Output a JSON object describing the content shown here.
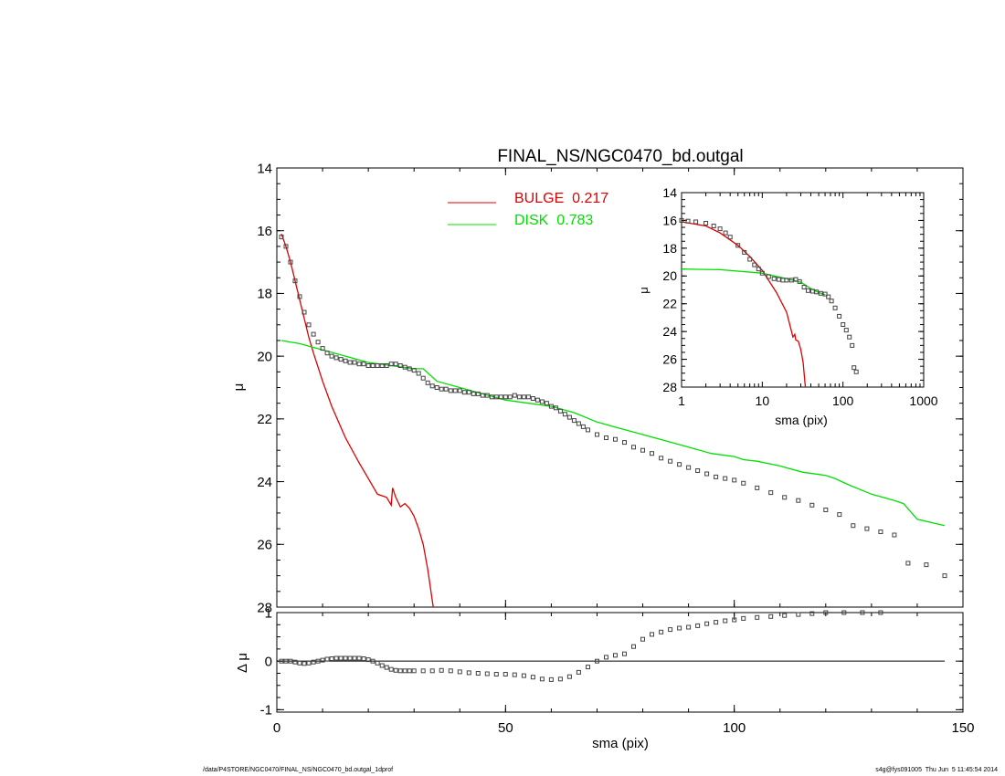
{
  "footer": {
    "path": "/data/P4STORE/NGC0470/FINAL_NS/NGC0470_bd.outgal_1dprof",
    "stamp": "s4g@fys091005  Thu Jun  5 11:45:54 2014"
  },
  "colors": {
    "bulge": "#e00000",
    "disk": "#00e000",
    "data": "#444444",
    "axis": "#000000"
  },
  "chart_data": [
    {
      "type": "line",
      "name": "main",
      "title": "FINAL_NS/NGC0470_bd.outgal",
      "xlabel": "",
      "ylabel": "μ",
      "xlim": [
        0,
        150
      ],
      "ylim": [
        28,
        14
      ],
      "yticks": [
        14,
        16,
        18,
        20,
        22,
        24,
        26,
        28
      ],
      "xticks": [
        0,
        50,
        100,
        150
      ],
      "legend": {
        "placement": "top-center",
        "entries": [
          {
            "label": "BULGE  0.217",
            "color": "#e00000"
          },
          {
            "label": "DISK  0.783",
            "color": "#00e000"
          }
        ]
      },
      "series": [
        {
          "name": "BULGE",
          "style": "line",
          "color": "#e00000",
          "x": [
            1,
            2,
            3,
            4,
            5,
            6,
            7,
            8,
            10,
            12,
            15,
            18,
            20,
            22,
            24,
            25,
            25.3,
            26,
            27,
            28,
            29,
            30,
            31,
            32,
            33,
            34.2
          ],
          "y": [
            16.1,
            16.5,
            17.0,
            17.6,
            18.2,
            18.8,
            19.4,
            19.9,
            20.8,
            21.6,
            22.6,
            23.4,
            23.9,
            24.4,
            24.5,
            24.75,
            24.2,
            24.5,
            24.8,
            24.7,
            24.85,
            25.1,
            25.5,
            26.0,
            26.8,
            28.0
          ]
        },
        {
          "name": "DISK",
          "style": "line",
          "color": "#00e000",
          "x": [
            1,
            5,
            10,
            15,
            20,
            25,
            30,
            32,
            35,
            40,
            45,
            50,
            55,
            60,
            65,
            70,
            75,
            80,
            85,
            90,
            95,
            100,
            102,
            105,
            110,
            115,
            120,
            122,
            125,
            130,
            135,
            137,
            140,
            146
          ],
          "y": [
            19.5,
            19.6,
            19.8,
            20.0,
            20.2,
            20.3,
            20.4,
            20.4,
            20.8,
            21.0,
            21.2,
            21.4,
            21.5,
            21.6,
            21.8,
            22.1,
            22.3,
            22.5,
            22.7,
            22.9,
            23.1,
            23.2,
            23.3,
            23.35,
            23.5,
            23.7,
            23.8,
            23.9,
            24.1,
            24.4,
            24.6,
            24.7,
            25.2,
            25.4
          ]
        },
        {
          "name": "data",
          "style": "markers",
          "color": "#444444",
          "x": [
            1,
            2,
            3,
            4,
            5,
            6,
            7,
            8,
            9,
            10,
            11,
            12,
            13,
            14,
            15,
            16,
            17,
            18,
            19,
            20,
            21,
            22,
            23,
            24,
            25,
            26,
            27,
            28,
            29,
            30,
            31,
            32,
            33,
            34,
            35,
            36,
            37,
            38,
            39,
            40,
            41,
            42,
            43,
            44,
            45,
            46,
            47,
            48,
            49,
            50,
            51,
            52,
            53,
            54,
            55,
            56,
            57,
            58,
            59,
            60,
            61,
            62,
            63,
            64,
            65,
            66,
            67,
            68,
            70,
            72,
            74,
            76,
            78,
            80,
            82,
            84,
            86,
            88,
            90,
            92,
            94,
            96,
            98,
            100,
            102,
            105,
            108,
            111,
            114,
            117,
            120,
            123,
            126,
            129,
            132,
            135,
            138,
            142,
            146
          ],
          "y": [
            16.2,
            16.5,
            17.0,
            17.6,
            18.1,
            18.6,
            19.0,
            19.3,
            19.55,
            19.75,
            19.9,
            20.0,
            20.05,
            20.1,
            20.15,
            20.2,
            20.2,
            20.25,
            20.25,
            20.3,
            20.3,
            20.3,
            20.3,
            20.3,
            20.25,
            20.25,
            20.3,
            20.35,
            20.4,
            20.45,
            20.55,
            20.7,
            20.85,
            20.95,
            21.0,
            21.05,
            21.05,
            21.1,
            21.1,
            21.1,
            21.15,
            21.15,
            21.2,
            21.2,
            21.25,
            21.25,
            21.3,
            21.3,
            21.3,
            21.3,
            21.3,
            21.25,
            21.3,
            21.3,
            21.3,
            21.35,
            21.4,
            21.45,
            21.5,
            21.6,
            21.65,
            21.75,
            21.85,
            21.95,
            22.05,
            22.15,
            22.25,
            22.35,
            22.5,
            22.6,
            22.65,
            22.75,
            22.9,
            23.0,
            23.1,
            23.25,
            23.35,
            23.45,
            23.55,
            23.65,
            23.75,
            23.85,
            23.9,
            23.95,
            24.05,
            24.2,
            24.35,
            24.5,
            24.6,
            24.75,
            24.9,
            25.05,
            25.4,
            25.5,
            25.6,
            25.7,
            26.6,
            26.65,
            27.0
          ]
        }
      ]
    },
    {
      "type": "scatter",
      "name": "residual",
      "xlabel": "sma (pix)",
      "ylabel": "Δ μ",
      "xlim": [
        0,
        150
      ],
      "ylim": [
        -1.05,
        1.0
      ],
      "yticks": [
        -1,
        0,
        1
      ],
      "xticks": [
        0,
        50,
        100,
        150
      ],
      "reference_line": 0,
      "series": [
        {
          "name": "residual",
          "style": "markers",
          "color": "#444444",
          "x": [
            1,
            2,
            3,
            4,
            5,
            6,
            7,
            8,
            9,
            10,
            11,
            12,
            13,
            14,
            15,
            16,
            17,
            18,
            19,
            20,
            21,
            22,
            23,
            24,
            25,
            26,
            27,
            28,
            29,
            30,
            32,
            34,
            36,
            38,
            40,
            42,
            44,
            46,
            48,
            50,
            52,
            54,
            56,
            58,
            60,
            62,
            64,
            66,
            68,
            70,
            72,
            74,
            76,
            78,
            80,
            82,
            84,
            86,
            88,
            90,
            92,
            94,
            96,
            98,
            100,
            102,
            105,
            108,
            111,
            114,
            117,
            120,
            124,
            128,
            132
          ],
          "y": [
            0.0,
            0.0,
            0.0,
            -0.02,
            -0.04,
            -0.05,
            -0.04,
            -0.02,
            0.0,
            0.02,
            0.04,
            0.05,
            0.06,
            0.06,
            0.06,
            0.06,
            0.06,
            0.06,
            0.05,
            0.03,
            0.0,
            -0.04,
            -0.09,
            -0.13,
            -0.17,
            -0.19,
            -0.2,
            -0.2,
            -0.2,
            -0.2,
            -0.2,
            -0.2,
            -0.19,
            -0.2,
            -0.22,
            -0.24,
            -0.25,
            -0.26,
            -0.27,
            -0.27,
            -0.28,
            -0.3,
            -0.33,
            -0.37,
            -0.38,
            -0.37,
            -0.32,
            -0.23,
            -0.12,
            0.0,
            0.08,
            0.12,
            0.15,
            0.3,
            0.45,
            0.55,
            0.6,
            0.65,
            0.68,
            0.7,
            0.73,
            0.77,
            0.8,
            0.83,
            0.85,
            0.88,
            0.9,
            0.92,
            0.94,
            0.96,
            0.98,
            1.0,
            1.0,
            1.0,
            1.0
          ]
        }
      ]
    },
    {
      "type": "line",
      "name": "inset",
      "xlabel": "sma (pix)",
      "ylabel": "μ",
      "xscale": "log",
      "xlim": [
        1,
        1000
      ],
      "ylim": [
        28,
        14
      ],
      "yticks": [
        14,
        16,
        18,
        20,
        22,
        24,
        26,
        28
      ],
      "xticks": [
        1,
        10,
        100,
        1000
      ],
      "series": [
        {
          "name": "BULGE",
          "style": "line",
          "color": "#e00000",
          "x": [
            1,
            2,
            3,
            5,
            7,
            10,
            15,
            20,
            24,
            25.3,
            26,
            28,
            30,
            32,
            34.2
          ],
          "y": [
            16.1,
            16.4,
            16.9,
            17.8,
            18.6,
            19.6,
            21.2,
            22.6,
            24.4,
            24.2,
            24.6,
            24.7,
            25.3,
            26.2,
            28.0
          ]
        },
        {
          "name": "DISK",
          "style": "line",
          "color": "#00e000",
          "x": [
            1,
            3,
            10,
            20,
            30,
            40,
            50,
            60
          ],
          "y": [
            19.5,
            19.55,
            19.8,
            20.2,
            20.45,
            20.9,
            21.2,
            21.35
          ]
        },
        {
          "name": "data",
          "style": "markers",
          "color": "#444444",
          "x": [
            1,
            1.2,
            1.5,
            2,
            2.5,
            3,
            3.5,
            4,
            5,
            6,
            7,
            8,
            9,
            10,
            12,
            14,
            16,
            18,
            20,
            23,
            26,
            29,
            33,
            37,
            42,
            47,
            53,
            60,
            66,
            72,
            80,
            90,
            100,
            110,
            120,
            130,
            137,
            146
          ],
          "y": [
            16.0,
            16.05,
            16.1,
            16.2,
            16.4,
            16.6,
            16.9,
            17.2,
            17.8,
            18.3,
            18.8,
            19.2,
            19.5,
            19.8,
            20.05,
            20.2,
            20.25,
            20.3,
            20.3,
            20.3,
            20.25,
            20.4,
            20.8,
            21.05,
            21.1,
            21.15,
            21.25,
            21.3,
            21.5,
            21.8,
            22.3,
            22.9,
            23.5,
            23.9,
            24.4,
            25.0,
            26.6,
            26.9
          ]
        }
      ]
    }
  ]
}
